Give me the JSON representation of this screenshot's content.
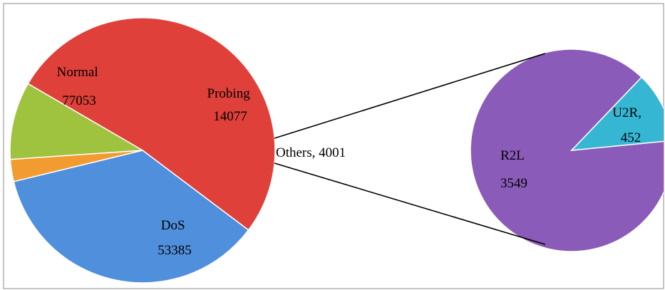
{
  "chart_data": [
    {
      "type": "pie",
      "slices": [
        {
          "label": "Normal",
          "value": 77053,
          "color": "#e0403a"
        },
        {
          "label": "DoS",
          "value": 53385,
          "color": "#4f8fdc"
        },
        {
          "label": "Others",
          "value": 4001,
          "color": "#f29b30"
        },
        {
          "label": "Probing",
          "value": 14077,
          "color": "#9fc23f"
        }
      ],
      "data_labels": [
        {
          "name": "Normal",
          "value": "77053",
          "separator": "newline"
        },
        {
          "name": "DoS",
          "value": "53385",
          "separator": "newline"
        },
        {
          "name": "Others",
          "value": "4001",
          "separator": ", "
        },
        {
          "name": "Probing",
          "value": "14077",
          "separator": "newline"
        }
      ]
    },
    {
      "type": "pie",
      "breakdown_of": "Others",
      "slices": [
        {
          "label": "R2L",
          "value": 3549,
          "color": "#8a5bb8"
        },
        {
          "label": "U2R",
          "value": 452,
          "color": "#35b7d3"
        }
      ],
      "data_labels": [
        {
          "name": "R2L",
          "value": "3549",
          "separator": "newline"
        },
        {
          "name": "U2R,",
          "value": "452",
          "separator": "newline"
        }
      ]
    }
  ]
}
